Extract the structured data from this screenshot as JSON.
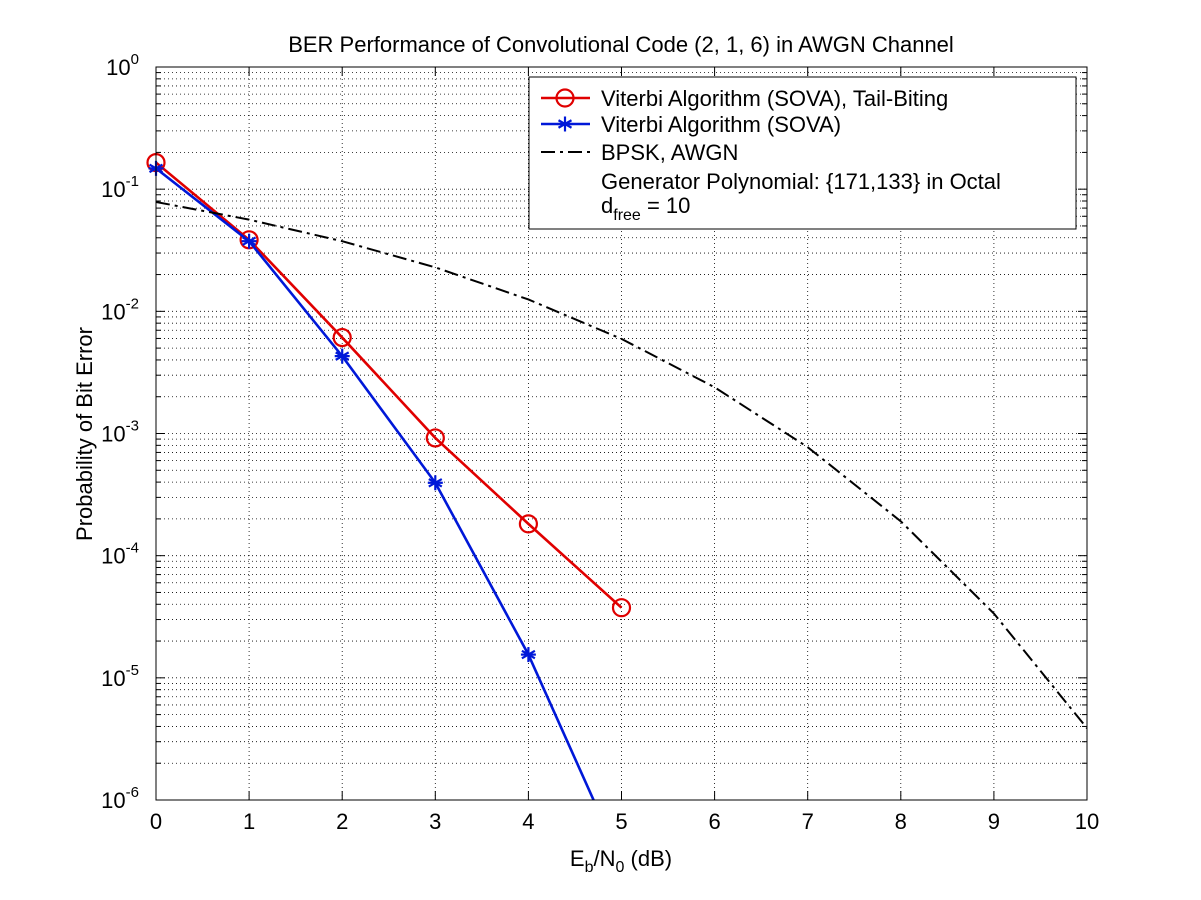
{
  "chart_data": {
    "type": "line",
    "title": "BER Performance of Convolutional Code (2, 1, 6) in AWGN Channel",
    "xlabel": {
      "main": "E",
      "sub1": "b",
      "slash": "/N",
      "sub2": "0",
      "unit": " (dB)"
    },
    "ylabel": "Probability of Bit Error",
    "xlim": [
      0,
      10
    ],
    "ylim_exponent": [
      -6,
      0
    ],
    "y_scale": "log",
    "grid": true,
    "x_ticks": [
      "0",
      "1",
      "2",
      "3",
      "4",
      "5",
      "6",
      "7",
      "8",
      "9",
      "10"
    ],
    "y_ticks": [
      {
        "base": "10",
        "exp": "0"
      },
      {
        "base": "10",
        "exp": "-1"
      },
      {
        "base": "10",
        "exp": "-2"
      },
      {
        "base": "10",
        "exp": "-3"
      },
      {
        "base": "10",
        "exp": "-4"
      },
      {
        "base": "10",
        "exp": "-5"
      },
      {
        "base": "10",
        "exp": "-6"
      }
    ],
    "legend_position": "top-right",
    "series": [
      {
        "name": "Viterbi Algorithm (SOVA), Tail-Biting",
        "color": "#e00000",
        "marker": "circle",
        "line": "solid",
        "x": [
          0,
          1,
          2,
          3,
          4,
          5
        ],
        "y": [
          0.165,
          0.0385,
          0.0061,
          0.00092,
          0.000182,
          3.75e-05
        ]
      },
      {
        "name": "Viterbi Algorithm (SOVA)",
        "color": "#0018d8",
        "marker": "asterisk",
        "line": "solid",
        "x": [
          0,
          1,
          2,
          3,
          4,
          4.7
        ],
        "y": [
          0.148,
          0.0375,
          0.0043,
          0.000395,
          1.55e-05,
          1e-06
        ]
      },
      {
        "name": "BPSK, AWGN",
        "color": "#000000",
        "marker": "none",
        "line": "dashdot",
        "x": [
          0,
          1,
          2,
          3,
          4,
          5,
          6,
          7,
          8,
          9,
          10
        ],
        "y": [
          0.0786,
          0.0563,
          0.0375,
          0.0229,
          0.0125,
          0.00595,
          0.00239,
          0.000773,
          0.000191,
          3.36e-05,
          3.87e-06
        ]
      }
    ],
    "annotations": {
      "generator": "Generator Polynomial: {171,133} in Octal",
      "dfree": {
        "main": "d",
        "sub": "free",
        "rest": " = 10"
      }
    }
  }
}
